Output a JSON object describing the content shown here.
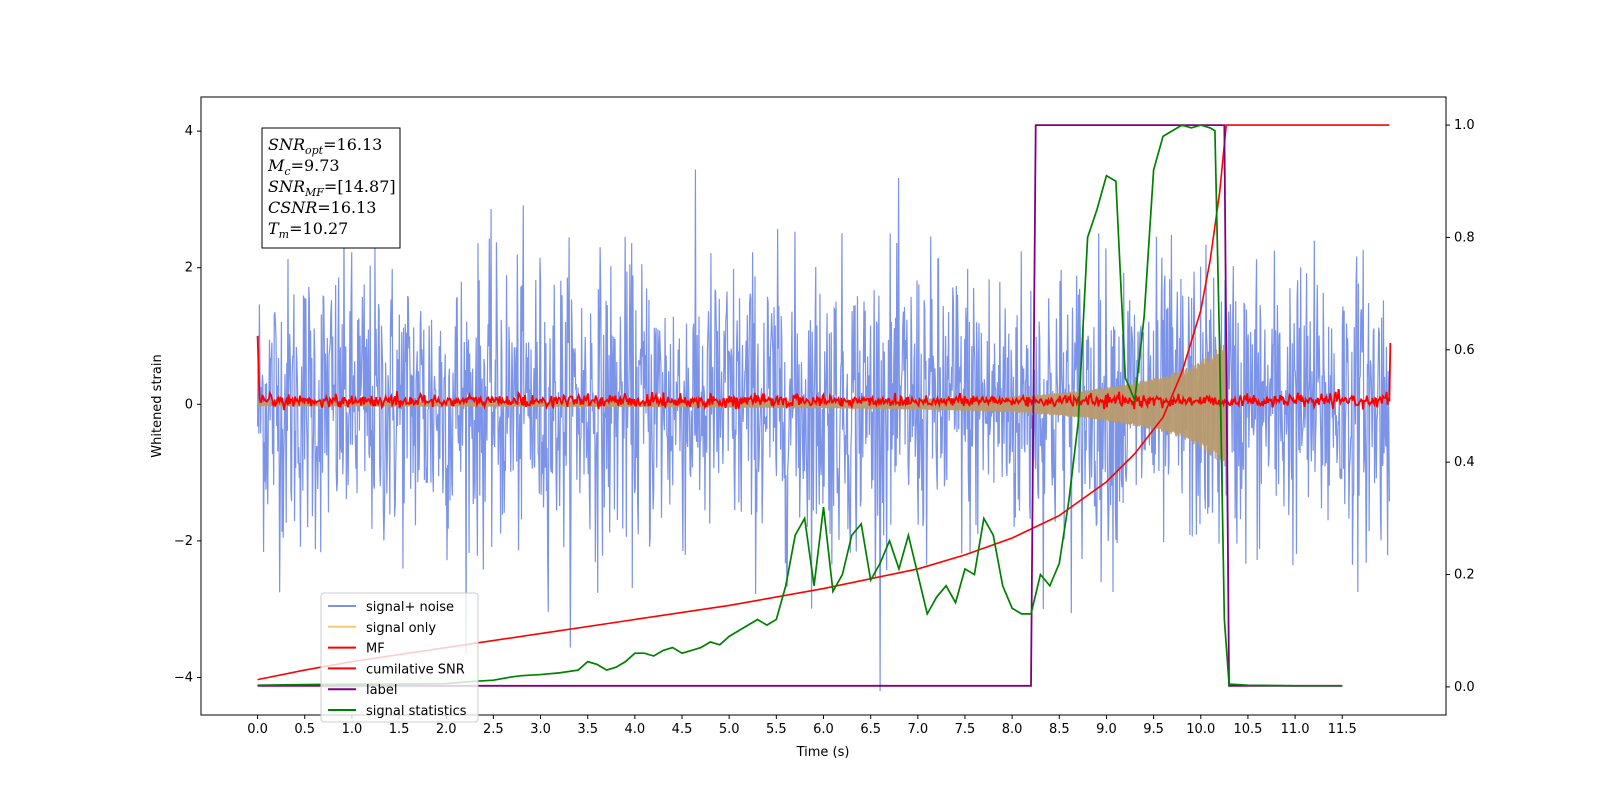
{
  "chart_data": {
    "type": "line",
    "xlabel": "Time (s)",
    "ylabel": "Whitened strain",
    "xlim": [
      -0.6,
      12.6
    ],
    "ylim": [
      -4.55,
      4.5
    ],
    "ylim_right": [
      -0.05,
      1.05
    ],
    "x_ticks": [
      0.0,
      0.5,
      1.0,
      1.5,
      2.0,
      2.5,
      3.0,
      3.5,
      4.0,
      4.5,
      5.0,
      5.5,
      6.0,
      6.5,
      7.0,
      7.5,
      8.0,
      8.5,
      9.0,
      9.5,
      10.0,
      10.5,
      11.0,
      11.5
    ],
    "x_tick_labels": [
      "0.0",
      "0.5",
      "1.0",
      "1.5",
      "2.0",
      "2.5",
      "3.0",
      "3.5",
      "4.0",
      "4.5",
      "5.0",
      "5.5",
      "6.0",
      "6.5",
      "7.0",
      "7.5",
      "8.0",
      "8.5",
      "9.0",
      "9.5",
      "10.0",
      "10.5",
      "11.0",
      "11.5"
    ],
    "y_ticks": [
      4,
      2,
      0,
      -2,
      -4
    ],
    "y_tick_labels": [
      "4",
      "2",
      "0",
      "−2",
      "−4"
    ],
    "y_ticks_right": [
      1.0,
      0.8,
      0.6,
      0.4,
      0.2,
      0.0
    ],
    "y_tick_labels_right": [
      "1.0",
      "0.8",
      "0.6",
      "0.4",
      "0.2",
      "0.0"
    ],
    "grid": false,
    "legend_position": "lower-left",
    "annotation": {
      "lines": [
        {
          "base": "SNR",
          "sub": "opt",
          "rest": "=16.13"
        },
        {
          "base": "M",
          "sub": "c",
          "rest": "=9.73"
        },
        {
          "base": "SNR",
          "sub": "MF",
          "rest": "=[14.87]"
        },
        {
          "base": "CSNR",
          "sub": "",
          "rest": "=16.13"
        },
        {
          "base": "T",
          "sub": "m",
          "rest": "=10.27"
        }
      ]
    },
    "series": [
      {
        "name": "signal+ noise",
        "color": "#7b93e8",
        "axis": "left",
        "style": "noise",
        "x_range": [
          0,
          12
        ],
        "amplitude_std": 1.0
      },
      {
        "name": "signal only",
        "color": "#f5c96e",
        "axis": "left",
        "style": "chirp",
        "x_range": [
          0,
          10.27
        ],
        "envelope": {
          "x": [
            0,
            4,
            6,
            7,
            8,
            8.5,
            9,
            9.5,
            9.8,
            10.0,
            10.15,
            10.27
          ],
          "y": [
            0.03,
            0.04,
            0.06,
            0.08,
            0.12,
            0.17,
            0.25,
            0.38,
            0.5,
            0.65,
            0.8,
            0.95
          ]
        }
      },
      {
        "name": "MF",
        "color": "#ff0000",
        "axis": "left",
        "style": "mf",
        "x": [
          0,
          0.02,
          12,
          12.01
        ],
        "y": [
          1.0,
          0.05,
          0.05,
          0.9
        ]
      },
      {
        "name": "cumilative SNR",
        "color": "#ff0000",
        "axis": "right",
        "x": [
          0,
          0.5,
          1,
          2,
          3,
          4,
          5,
          6,
          7,
          7.5,
          8,
          8.5,
          9,
          9.3,
          9.6,
          9.8,
          10.0,
          10.1,
          10.2,
          10.27,
          12.0
        ],
        "y": [
          0.013,
          0.03,
          0.045,
          0.07,
          0.095,
          0.12,
          0.145,
          0.175,
          0.21,
          0.235,
          0.265,
          0.305,
          0.365,
          0.415,
          0.48,
          0.56,
          0.67,
          0.76,
          0.88,
          1.0,
          1.0
        ]
      },
      {
        "name": "label",
        "color": "#800080",
        "axis": "right",
        "x": [
          0,
          8.2,
          8.25,
          10.25,
          10.3,
          11.5
        ],
        "y": [
          0.002,
          0.002,
          1.0,
          1.0,
          0.002,
          0.002
        ]
      },
      {
        "name": "signal statistics",
        "color": "#008000",
        "axis": "right",
        "x": [
          0,
          0.5,
          1.0,
          1.5,
          2.0,
          2.3,
          2.5,
          2.7,
          2.8,
          3.0,
          3.2,
          3.4,
          3.5,
          3.6,
          3.7,
          3.8,
          3.9,
          4.0,
          4.1,
          4.2,
          4.3,
          4.4,
          4.5,
          4.6,
          4.7,
          4.8,
          4.9,
          5.0,
          5.1,
          5.2,
          5.3,
          5.4,
          5.5,
          5.6,
          5.7,
          5.8,
          5.9,
          6.0,
          6.1,
          6.2,
          6.3,
          6.4,
          6.5,
          6.6,
          6.7,
          6.8,
          6.9,
          7.0,
          7.1,
          7.2,
          7.3,
          7.4,
          7.5,
          7.6,
          7.7,
          7.8,
          7.9,
          8.0,
          8.1,
          8.2,
          8.3,
          8.4,
          8.5,
          8.6,
          8.7,
          8.8,
          8.9,
          9.0,
          9.1,
          9.2,
          9.3,
          9.4,
          9.5,
          9.6,
          9.7,
          9.8,
          9.9,
          10.0,
          10.1,
          10.15,
          10.2,
          10.25,
          10.3,
          10.5,
          11.0,
          11.5
        ],
        "y": [
          0.003,
          0.004,
          0.005,
          0.005,
          0.006,
          0.01,
          0.012,
          0.018,
          0.02,
          0.022,
          0.025,
          0.03,
          0.045,
          0.04,
          0.03,
          0.035,
          0.045,
          0.06,
          0.06,
          0.055,
          0.065,
          0.07,
          0.06,
          0.065,
          0.07,
          0.08,
          0.075,
          0.09,
          0.1,
          0.11,
          0.12,
          0.11,
          0.12,
          0.18,
          0.27,
          0.3,
          0.18,
          0.32,
          0.17,
          0.2,
          0.27,
          0.29,
          0.19,
          0.22,
          0.26,
          0.21,
          0.27,
          0.2,
          0.13,
          0.16,
          0.18,
          0.15,
          0.21,
          0.2,
          0.3,
          0.27,
          0.18,
          0.14,
          0.13,
          0.13,
          0.2,
          0.18,
          0.22,
          0.33,
          0.47,
          0.8,
          0.85,
          0.91,
          0.9,
          0.55,
          0.51,
          0.66,
          0.92,
          0.98,
          0.99,
          1.0,
          0.995,
          1.0,
          0.995,
          0.99,
          0.6,
          0.12,
          0.005,
          0.003,
          0.002,
          0.002
        ]
      }
    ]
  }
}
